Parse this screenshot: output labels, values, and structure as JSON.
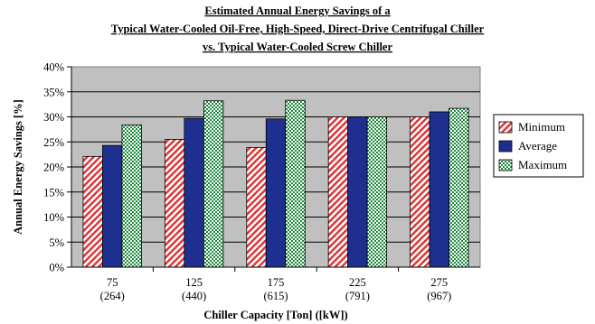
{
  "chart_data": {
    "type": "bar",
    "title": [
      "Estimated Annual Energy Savings of a",
      "Typical Water-Cooled Oil-Free, High-Speed, Direct-Drive Centrifugal Chiller",
      "vs. Typical Water-Cooled Screw Chiller"
    ],
    "xlabel": "Chiller Capacity [Ton] ([kW])",
    "ylabel": "Annual Energy Savings [%]",
    "categories": [
      {
        "ton": "75",
        "kw": "(264)"
      },
      {
        "ton": "125",
        "kw": "(440)"
      },
      {
        "ton": "175",
        "kw": "(615)"
      },
      {
        "ton": "225",
        "kw": "(791)"
      },
      {
        "ton": "275",
        "kw": "(967)"
      }
    ],
    "series": [
      {
        "name": "Minimum",
        "values": [
          22.1,
          25.5,
          23.9,
          30.0,
          30.0
        ],
        "color": "#e03030",
        "pattern": "diagonal-stripes"
      },
      {
        "name": "Average",
        "values": [
          24.3,
          29.7,
          29.6,
          30.0,
          31.0
        ],
        "color": "#1f2f8f",
        "pattern": "solid"
      },
      {
        "name": "Maximum",
        "values": [
          28.4,
          33.2,
          33.3,
          30.0,
          31.7
        ],
        "color": "#1a8a3a",
        "pattern": "checker"
      }
    ],
    "ylim": [
      0,
      40
    ],
    "ytick_step": 5,
    "ytick_suffix": "%",
    "grid": true,
    "plot_background": "#c0c0c0",
    "legend_position": "right"
  }
}
